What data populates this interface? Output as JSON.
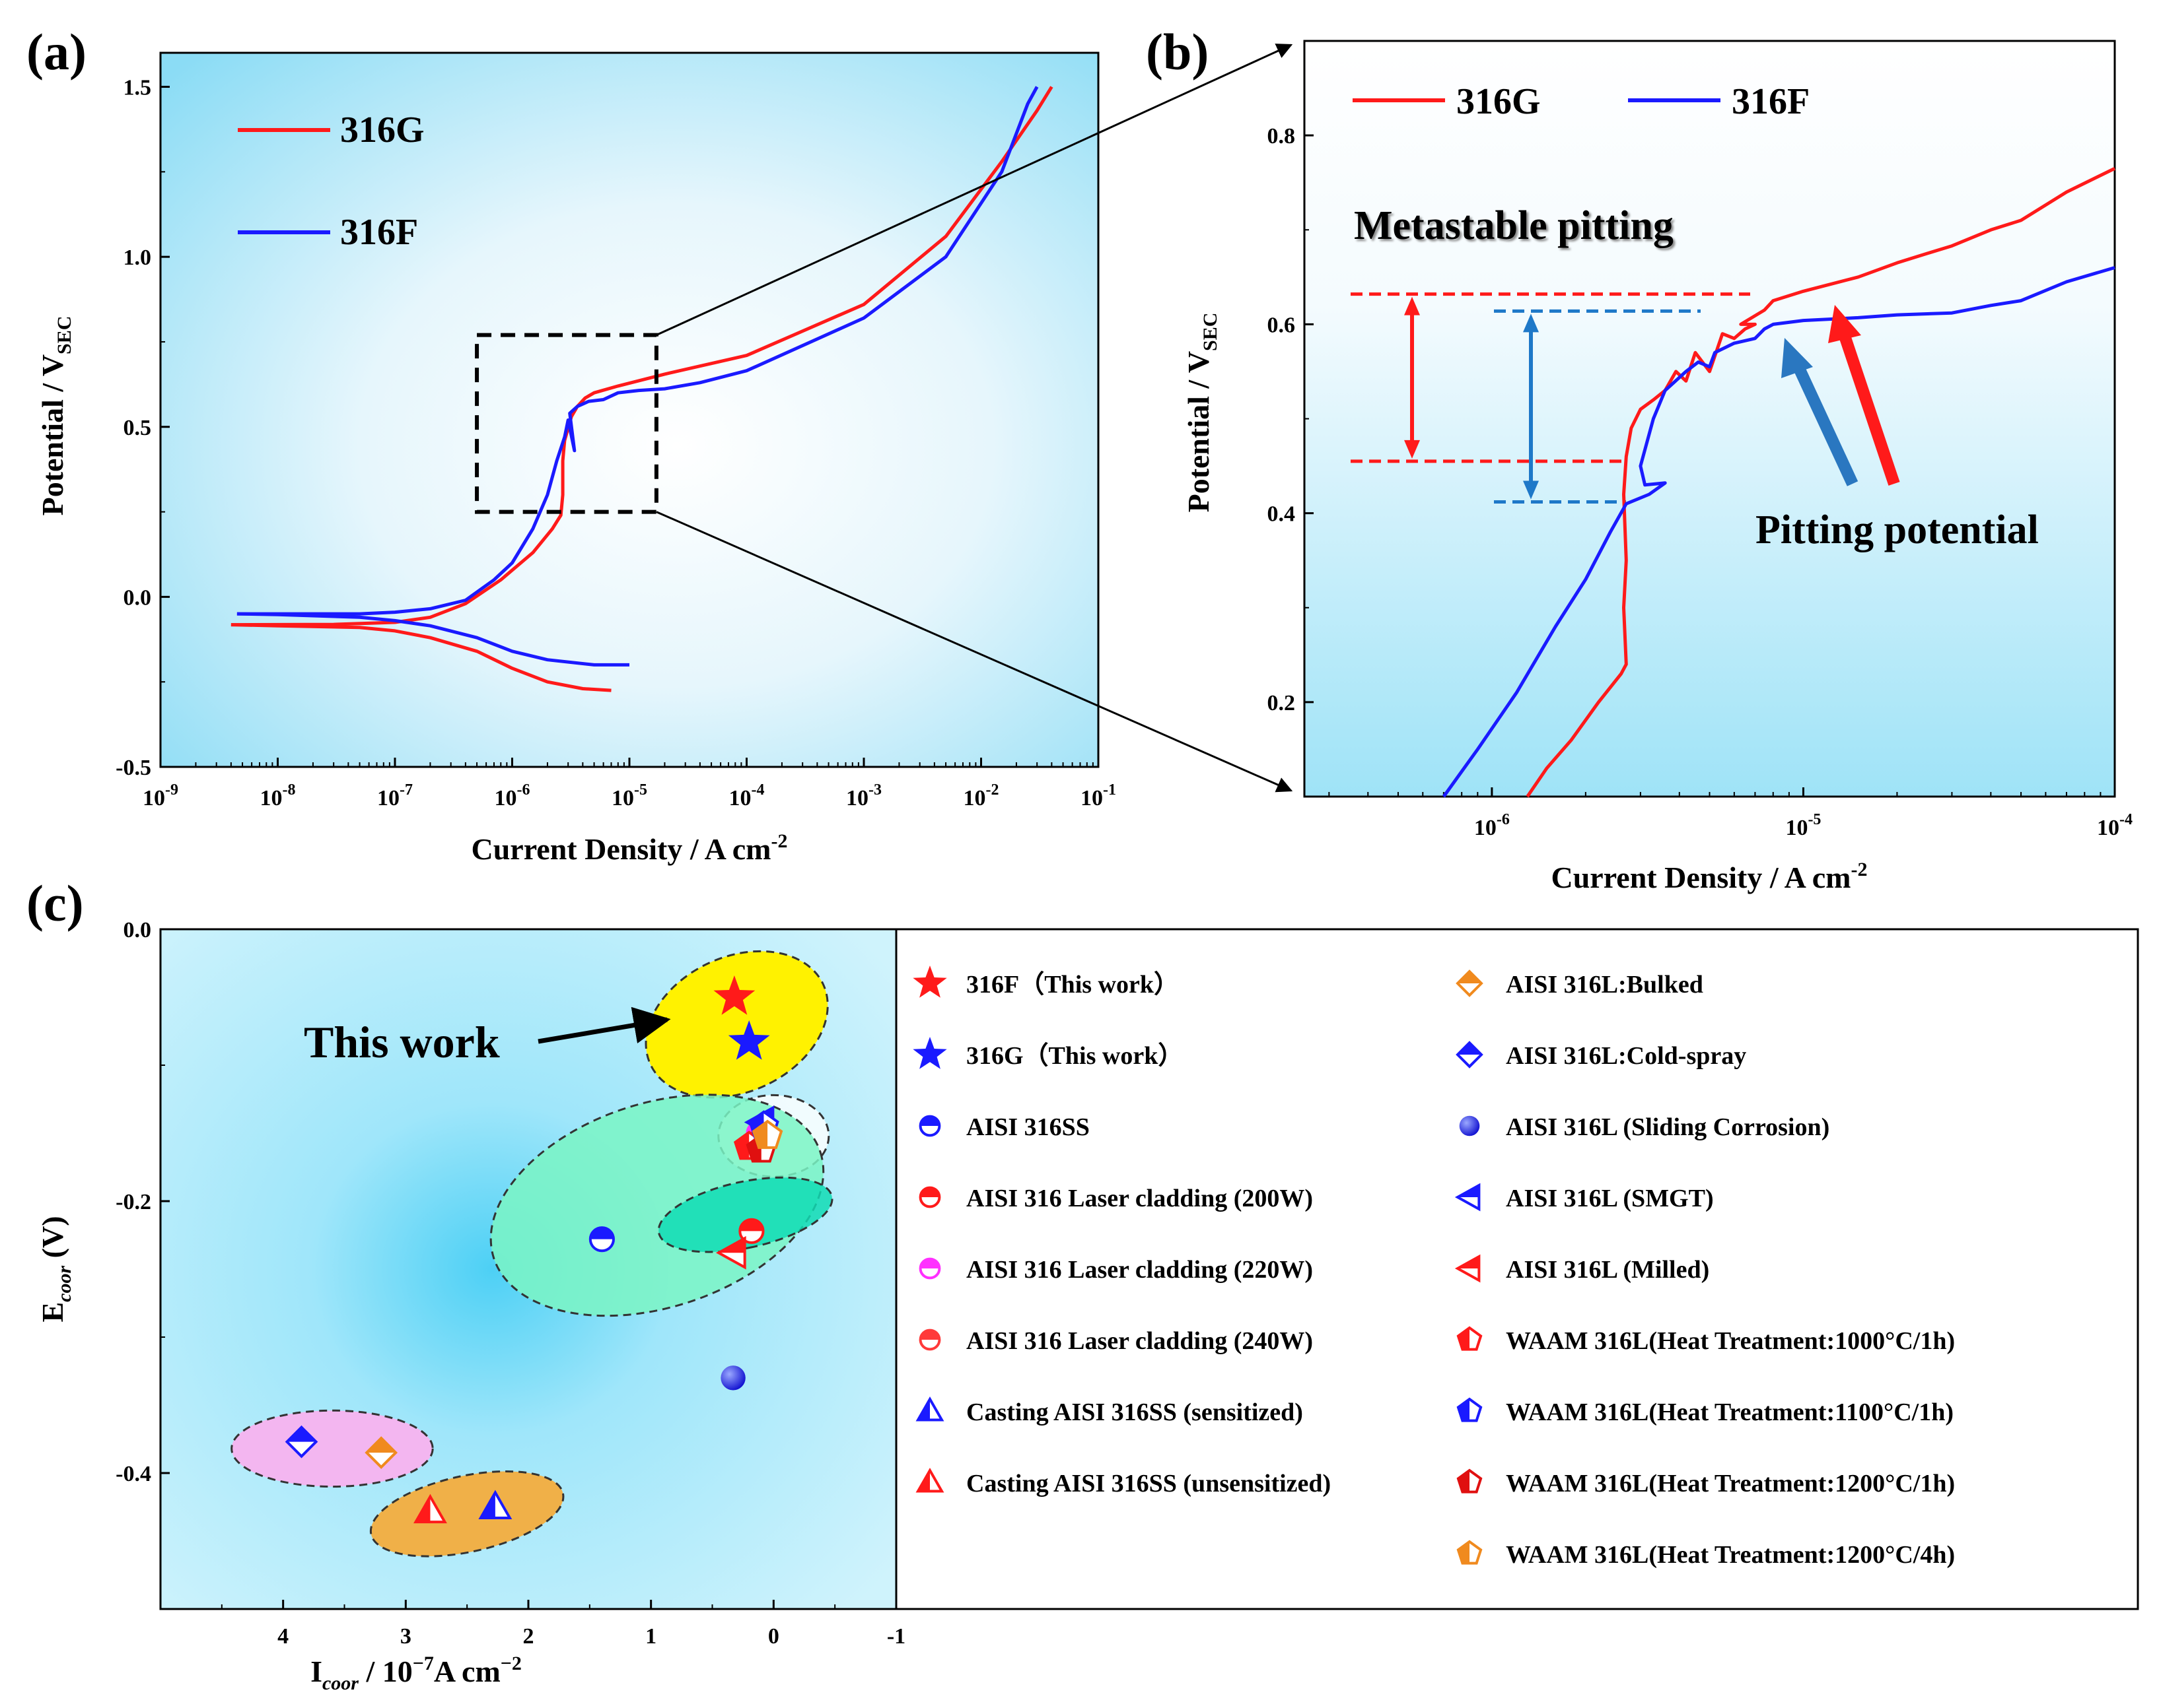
{
  "panel_labels": {
    "a": "(a)",
    "b": "(b)",
    "c": "(c)"
  },
  "colors": {
    "red": "#ff1a1a",
    "blue": "#1a1aff",
    "dash_blue": "#1e78c8",
    "arrow_blue": "#2a77c0"
  },
  "chart_data": [
    {
      "id": "a",
      "type": "line",
      "xscale": "log",
      "xlim": [
        1e-09,
        0.1
      ],
      "ylim": [
        -0.5,
        1.6
      ],
      "xlabel": "Current Density / A cm",
      "xlabel_sup": "-2",
      "ylabel": "Potential / V",
      "ylabel_sub": "SEC",
      "xticks": [
        {
          "base": "10",
          "exp": "-9"
        },
        {
          "base": "10",
          "exp": "-8"
        },
        {
          "base": "10",
          "exp": "-7"
        },
        {
          "base": "10",
          "exp": "-6"
        },
        {
          "base": "10",
          "exp": "-5"
        },
        {
          "base": "10",
          "exp": "-4"
        },
        {
          "base": "10",
          "exp": "-3"
        },
        {
          "base": "10",
          "exp": "-2"
        },
        {
          "base": "10",
          "exp": "-1"
        }
      ],
      "yticks": [
        "-0.5",
        "0.0",
        "0.5",
        "1.0",
        "1.5"
      ],
      "legend": [
        "316G",
        "316F"
      ],
      "series": [
        {
          "name": "316G",
          "color": "#ff1a1a",
          "cathodic": [
            [
              7e-06,
              -0.275
            ],
            [
              4e-06,
              -0.27
            ],
            [
              2e-06,
              -0.25
            ],
            [
              1e-06,
              -0.21
            ],
            [
              5e-07,
              -0.16
            ],
            [
              2e-07,
              -0.12
            ],
            [
              1e-07,
              -0.1
            ],
            [
              5e-08,
              -0.09
            ],
            [
              1e-08,
              -0.085
            ],
            [
              4e-09,
              -0.082
            ]
          ],
          "anodic": [
            [
              4e-09,
              -0.082
            ],
            [
              3e-08,
              -0.081
            ],
            [
              1e-07,
              -0.075
            ],
            [
              2e-07,
              -0.06
            ],
            [
              4e-07,
              -0.02
            ],
            [
              8e-07,
              0.05
            ],
            [
              1.5e-06,
              0.13
            ],
            [
              2.2e-06,
              0.2
            ],
            [
              2.6e-06,
              0.24
            ],
            [
              2.7e-06,
              0.3
            ],
            [
              2.7e-06,
              0.4
            ],
            [
              2.8e-06,
              0.46
            ],
            [
              3.2e-06,
              0.53
            ],
            [
              3.6e-06,
              0.56
            ],
            [
              4.2e-06,
              0.585
            ],
            [
              5e-06,
              0.6
            ],
            [
              8e-06,
              0.62
            ],
            [
              2e-05,
              0.655
            ],
            [
              0.0001,
              0.71
            ],
            [
              0.001,
              0.86
            ],
            [
              0.005,
              1.06
            ],
            [
              0.015,
              1.28
            ],
            [
              0.03,
              1.43
            ],
            [
              0.04,
              1.5
            ]
          ]
        },
        {
          "name": "316F",
          "color": "#1a1aff",
          "cathodic": [
            [
              1e-05,
              -0.2
            ],
            [
              5e-06,
              -0.2
            ],
            [
              2e-06,
              -0.185
            ],
            [
              1e-06,
              -0.16
            ],
            [
              5e-07,
              -0.12
            ],
            [
              2e-07,
              -0.085
            ],
            [
              1e-07,
              -0.07
            ],
            [
              5e-08,
              -0.06
            ],
            [
              1e-08,
              -0.052
            ],
            [
              4.5e-09,
              -0.05
            ]
          ],
          "anodic": [
            [
              4.5e-09,
              -0.05
            ],
            [
              5e-08,
              -0.05
            ],
            [
              1e-07,
              -0.045
            ],
            [
              2e-07,
              -0.035
            ],
            [
              4e-07,
              -0.01
            ],
            [
              7e-07,
              0.05
            ],
            [
              1e-06,
              0.1
            ],
            [
              1.5e-06,
              0.2
            ],
            [
              2e-06,
              0.3
            ],
            [
              2.4e-06,
              0.4
            ],
            [
              2.8e-06,
              0.47
            ],
            [
              3e-06,
              0.52
            ],
            [
              3.4e-06,
              0.43
            ],
            [
              3.1e-06,
              0.54
            ],
            [
              3.6e-06,
              0.56
            ],
            [
              4.5e-06,
              0.575
            ],
            [
              6e-06,
              0.58
            ],
            [
              8e-06,
              0.6
            ],
            [
              1.2e-05,
              0.607
            ],
            [
              2e-05,
              0.612
            ],
            [
              4e-05,
              0.63
            ],
            [
              0.0001,
              0.665
            ],
            [
              0.001,
              0.82
            ],
            [
              0.005,
              1.0
            ],
            [
              0.015,
              1.25
            ],
            [
              0.025,
              1.45
            ],
            [
              0.03,
              1.5
            ]
          ]
        }
      ],
      "zoom_box": {
        "x": [
          5e-07,
          1.7e-05
        ],
        "y": [
          0.25,
          0.77
        ]
      }
    },
    {
      "id": "b",
      "type": "line",
      "xscale": "log",
      "xlim": [
        2.5e-07,
        0.0001
      ],
      "ylim": [
        0.1,
        0.9
      ],
      "xlabel": "Current Density / A cm",
      "xlabel_sup": "-2",
      "ylabel": "Potential / V",
      "ylabel_sub": "SEC",
      "xticks": [
        {
          "base": "10",
          "exp": "-6"
        },
        {
          "base": "10",
          "exp": "-5"
        },
        {
          "base": "10",
          "exp": "-4"
        }
      ],
      "yticks": [
        "0.2",
        "0.4",
        "0.6",
        "0.8"
      ],
      "legend": [
        "316G",
        "316F"
      ],
      "annotations": {
        "metastable": "Metastable pitting",
        "pitting": "Pitting potential"
      },
      "levels": {
        "red_top": 0.632,
        "red_bottom": 0.455,
        "blue_top": 0.614,
        "blue_bottom": 0.412
      },
      "series": [
        {
          "name": "316G",
          "color": "#ff1a1a",
          "points": [
            [
              1.3e-06,
              0.1
            ],
            [
              1.5e-06,
              0.13
            ],
            [
              1.8e-06,
              0.16
            ],
            [
              2.2e-06,
              0.2
            ],
            [
              2.6e-06,
              0.23
            ],
            [
              2.7e-06,
              0.24
            ],
            [
              2.65e-06,
              0.3
            ],
            [
              2.7e-06,
              0.35
            ],
            [
              2.65e-06,
              0.42
            ],
            [
              2.7e-06,
              0.46
            ],
            [
              2.8e-06,
              0.49
            ],
            [
              3e-06,
              0.51
            ],
            [
              3.3e-06,
              0.52
            ],
            [
              3.6e-06,
              0.53
            ],
            [
              3.9e-06,
              0.55
            ],
            [
              4.2e-06,
              0.54
            ],
            [
              4.5e-06,
              0.57
            ],
            [
              5e-06,
              0.55
            ],
            [
              5.5e-06,
              0.59
            ],
            [
              6e-06,
              0.585
            ],
            [
              6.5e-06,
              0.595
            ],
            [
              7e-06,
              0.6
            ],
            [
              6.3e-06,
              0.6
            ],
            [
              7.5e-06,
              0.615
            ],
            [
              8e-06,
              0.625
            ],
            [
              1e-05,
              0.635
            ],
            [
              1.5e-05,
              0.65
            ],
            [
              2e-05,
              0.665
            ],
            [
              2.5e-05,
              0.675
            ],
            [
              3e-05,
              0.683
            ],
            [
              4e-05,
              0.7
            ],
            [
              5e-05,
              0.71
            ],
            [
              7e-05,
              0.74
            ],
            [
              0.0001,
              0.765
            ]
          ]
        },
        {
          "name": "316F",
          "color": "#1a1aff",
          "points": [
            [
              7e-07,
              0.1
            ],
            [
              9e-07,
              0.15
            ],
            [
              1.2e-06,
              0.21
            ],
            [
              1.6e-06,
              0.28
            ],
            [
              2e-06,
              0.33
            ],
            [
              2.4e-06,
              0.38
            ],
            [
              2.7e-06,
              0.41
            ],
            [
              3.2e-06,
              0.42
            ],
            [
              3.6e-06,
              0.432
            ],
            [
              3.1e-06,
              0.43
            ],
            [
              3e-06,
              0.45
            ],
            [
              3.3e-06,
              0.5
            ],
            [
              3.6e-06,
              0.53
            ],
            [
              4.2e-06,
              0.55
            ],
            [
              4.6e-06,
              0.56
            ],
            [
              5e-06,
              0.555
            ],
            [
              5.2e-06,
              0.57
            ],
            [
              6e-06,
              0.58
            ],
            [
              7e-06,
              0.585
            ],
            [
              7.5e-06,
              0.595
            ],
            [
              8e-06,
              0.6
            ],
            [
              1e-05,
              0.604
            ],
            [
              1.5e-05,
              0.607
            ],
            [
              2e-05,
              0.61
            ],
            [
              3e-05,
              0.612
            ],
            [
              4e-05,
              0.62
            ],
            [
              5e-05,
              0.625
            ],
            [
              7e-05,
              0.645
            ],
            [
              0.0001,
              0.66
            ]
          ]
        }
      ]
    },
    {
      "id": "c",
      "type": "scatter",
      "xlim": [
        5,
        -1
      ],
      "ylim": [
        -0.5,
        0.0
      ],
      "xlabel": "I",
      "xlabel_sub": "coor",
      "xlabel_rest": " / 10",
      "xlabel_sup": "−7",
      "xlabel_unit": "A cm",
      "xlabel_unit_sup": "−2",
      "ylabel": "E",
      "ylabel_sub": "coor",
      "ylabel_rest": " (V)",
      "xticks": [
        "4",
        "3",
        "2",
        "1",
        "0",
        "-1"
      ],
      "yticks": [
        "0.0",
        "-0.2",
        "-0.4"
      ],
      "annotation": "This work",
      "points": [
        {
          "label": "316F（This work）",
          "x": 0.32,
          "y": -0.05,
          "marker": "star",
          "color": "#ff1a1a"
        },
        {
          "label": "316G（This work）",
          "x": 0.2,
          "y": -0.083,
          "marker": "star",
          "color": "#1a1aff"
        },
        {
          "label": "AISI 316SS",
          "x": 1.4,
          "y": -0.228,
          "marker": "half-circle",
          "color": "#1a1aff"
        },
        {
          "label": "AISI 316 Laser cladding (200W)",
          "x": 0.18,
          "y": -0.222,
          "marker": "half-circle",
          "color": "#ff1a1a"
        },
        {
          "label": "AISI 316 Laser cladding (220W)",
          "x": 0.12,
          "y": -0.15,
          "marker": "half-circle",
          "color": "#ff30ff"
        },
        {
          "label": "AISI 316 Laser cladding (240W)",
          "x": 0.15,
          "y": -0.158,
          "marker": "half-circle",
          "color": "#ff3a3a"
        },
        {
          "label": "Casting AISI 316SS (sensitized)",
          "x": 2.27,
          "y": -0.425,
          "marker": "triangle",
          "color": "#1a1aff"
        },
        {
          "label": "Casting AISI 316SS (unsensitized)",
          "x": 2.8,
          "y": -0.428,
          "marker": "triangle",
          "color": "#ff1a1a"
        },
        {
          "label": "AISI 316L:Bulked",
          "x": 3.2,
          "y": -0.385,
          "marker": "diamond",
          "color": "#f08a1e"
        },
        {
          "label": "AISI 316L:Cold-spray",
          "x": 3.85,
          "y": -0.377,
          "marker": "diamond",
          "color": "#1a1aff"
        },
        {
          "label": "AISI 316L (Sliding Corrosion)",
          "x": 0.33,
          "y": -0.33,
          "marker": "ball",
          "color": "#1a1aff"
        },
        {
          "label": "AISI 316L (SMGT)",
          "x": 0.1,
          "y": -0.142,
          "marker": "left-triangle",
          "color": "#1a1aff"
        },
        {
          "label": "AISI 316L (Milled)",
          "x": 0.33,
          "y": -0.238,
          "marker": "left-triangle",
          "color": "#ff1a1a"
        },
        {
          "label": "WAAM 316L(Heat Treatment:1000°C/1h)",
          "x": 0.2,
          "y": -0.16,
          "marker": "pentagon",
          "color": "#ff1a1a"
        },
        {
          "label": "WAAM 316L(Heat Treatment:1100°C/1h)",
          "x": 0.08,
          "y": -0.145,
          "marker": "pentagon",
          "color": "#1a1aff"
        },
        {
          "label": "WAAM 316L(Heat Treatment:1200°C/1h)",
          "x": 0.1,
          "y": -0.162,
          "marker": "pentagon",
          "color": "#e01010"
        },
        {
          "label": "WAAM 316L(Heat Treatment:1200°C/4h)",
          "x": 0.05,
          "y": -0.152,
          "marker": "pentagon",
          "color": "#f08a1e"
        }
      ],
      "groups": [
        {
          "cx": 0.3,
          "cy": -0.07,
          "rx": 0.55,
          "ry": 0.07,
          "angle": 0,
          "fill": "#fff200",
          "opacity": 1.0
        },
        {
          "cx": 0.0,
          "cy": -0.152,
          "rx": 0.45,
          "ry": 0.03,
          "angle": 0,
          "fill": "#ffffff",
          "opacity": 0.8
        },
        {
          "cx": 0.95,
          "cy": -0.203,
          "rx": 1.4,
          "ry": 0.075,
          "angle": 0,
          "fill": "#7af5c4",
          "opacity": 0.85
        },
        {
          "cx": 0.23,
          "cy": -0.21,
          "rx": 0.27,
          "ry": 0.065,
          "angle": 0,
          "fill": "#10dcb4",
          "opacity": 0.85
        },
        {
          "cx": 3.6,
          "cy": -0.382,
          "rx": 0.82,
          "ry": 0.028,
          "angle": 0,
          "fill": "#f3b6f0",
          "opacity": 1.0
        },
        {
          "cx": 2.5,
          "cy": -0.43,
          "rx": 0.8,
          "ry": 0.028,
          "angle": 0,
          "fill": "#f0b048",
          "opacity": 1.0
        }
      ]
    }
  ]
}
